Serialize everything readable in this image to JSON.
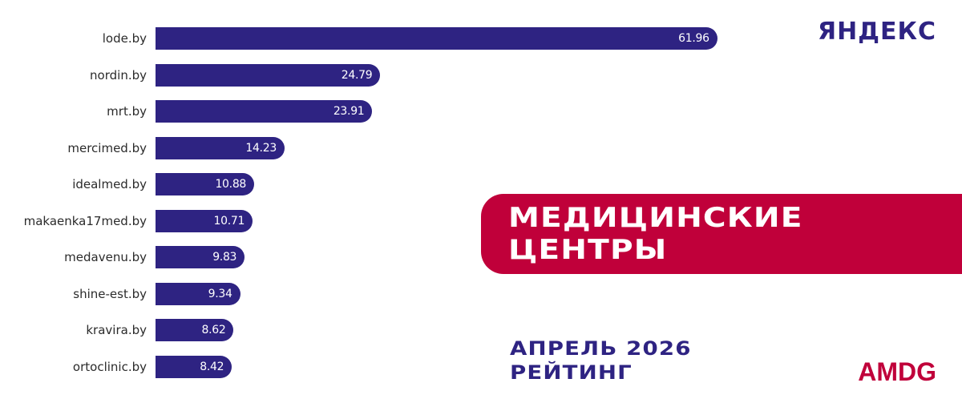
{
  "header": {
    "brand": "ЯНДЕКС"
  },
  "banner": {
    "line1": "МЕДИЦИНСКИЕ",
    "line2": "ЦЕНТРЫ"
  },
  "footer": {
    "period": "АПРЕЛЬ 2026",
    "caption": "РЕЙТИНГ",
    "logo": "AMDG"
  },
  "colors": {
    "bar": "#2e2382",
    "accent": "#c0003a",
    "label": "#2b2b2b"
  },
  "chart_data": {
    "type": "bar",
    "orientation": "horizontal",
    "title": "МЕДИЦИНСКИЕ ЦЕНТРЫ — Яндекс, рейтинг, апрель 2026",
    "categories": [
      "lode.by",
      "nordin.by",
      "mrt.by",
      "mercimed.by",
      "idealmed.by",
      "makaenka17med.by",
      "medavenu.by",
      "shine-est.by",
      "kravira.by",
      "ortoclinic.by"
    ],
    "values": [
      61.96,
      24.79,
      23.91,
      14.23,
      10.88,
      10.71,
      9.83,
      9.34,
      8.62,
      8.42
    ],
    "labels": [
      "61.96",
      "24.79",
      "23.91",
      "14.23",
      "10.88",
      "10.71",
      "9.83",
      "9.34",
      "8.62",
      "8.42"
    ],
    "xlabel": "",
    "ylabel": "",
    "grid": false,
    "legend": "none",
    "data_labels": "inside-end"
  }
}
